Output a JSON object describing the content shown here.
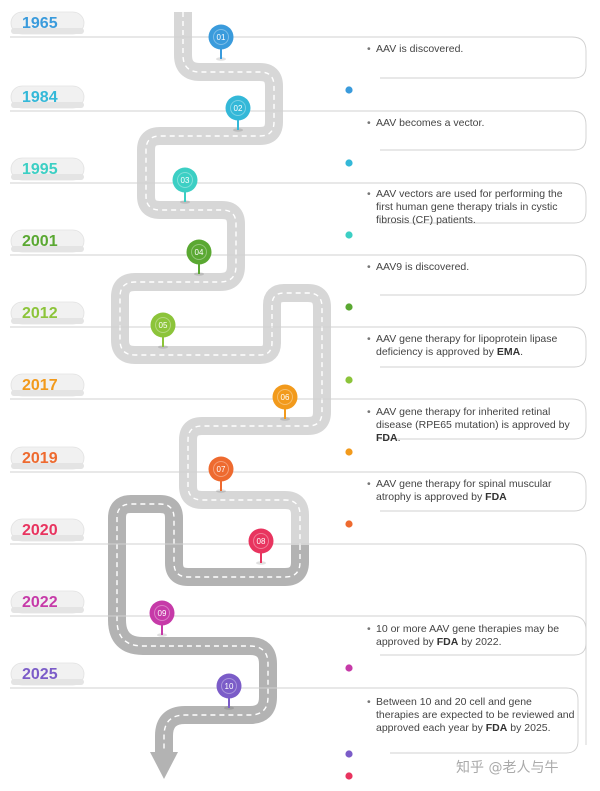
{
  "milestones": [
    {
      "year": "1965",
      "pin": "01",
      "color": "#3a9bdc",
      "text": "AAV is discovered.",
      "org": "",
      "suffix": ""
    },
    {
      "year": "1984",
      "pin": "02",
      "color": "#34b8d8",
      "text": "AAV becomes a vector.",
      "org": "",
      "suffix": ""
    },
    {
      "year": "1995",
      "pin": "03",
      "color": "#3ccfc4",
      "text": "AAV vectors are used for performing the first human gene therapy trials in cystic fibrosis (CF) patients.",
      "org": "",
      "suffix": ""
    },
    {
      "year": "2001",
      "pin": "04",
      "color": "#5aa832",
      "text": "AAV9 is discovered.",
      "org": "",
      "suffix": ""
    },
    {
      "year": "2012",
      "pin": "05",
      "color": "#8cc43a",
      "text": "AAV gene therapy for lipoprotein lipase deficiency is approved by ",
      "org": "EMA",
      "suffix": "."
    },
    {
      "year": "2017",
      "pin": "06",
      "color": "#f29a1c",
      "text": "AAV gene therapy for inherited retinal disease (RPE65 mutation) is approved by ",
      "org": "FDA",
      "suffix": "."
    },
    {
      "year": "2019",
      "pin": "07",
      "color": "#ee6a2f",
      "text": "AAV gene therapy for spinal muscular atrophy is approved by ",
      "org": "FDA",
      "suffix": ""
    },
    {
      "year": "2020",
      "pin": "08",
      "color": "#e8345f",
      "text": "",
      "org": "",
      "suffix": ""
    },
    {
      "year": "2022",
      "pin": "09",
      "color": "#c63aa8",
      "text": "10 or more AAV gene therapies may be approved by ",
      "org": "FDA",
      "suffix": " by 2022."
    },
    {
      "year": "2025",
      "pin": "10",
      "color": "#7b5cc8",
      "text": "Between 10 and 20 cell and gene therapies are expected to be reviewed and approved each year by ",
      "org": "FDA",
      "suffix": " by 2025."
    }
  ],
  "watermark": "知乎 @老人与牛"
}
